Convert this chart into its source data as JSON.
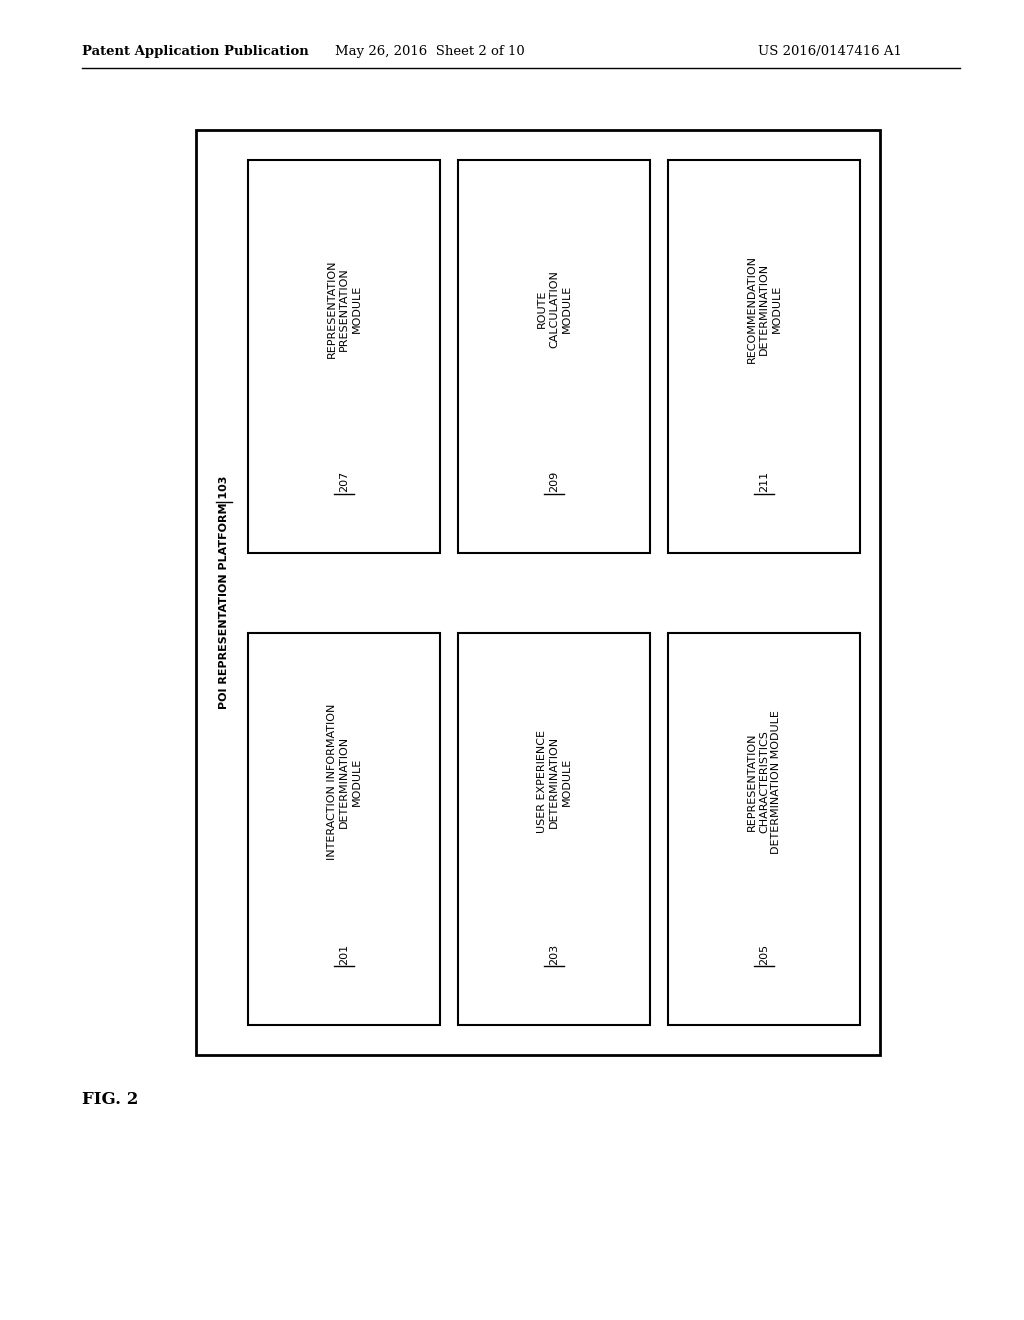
{
  "fig_width": 10.24,
  "fig_height": 13.2,
  "bg_color": "#ffffff",
  "header_text": "Patent Application Publication",
  "header_date": "May 26, 2016  Sheet 2 of 10",
  "header_patent": "US 2016/0147416 A1",
  "fig_label": "FIG. 2",
  "platform_label": "POI REPRESENTATION PLATFORM 103",
  "top_row_boxes": [
    {
      "lines": [
        "REPRESENTATION",
        "PRESENTATION",
        "MODULE",
        "207"
      ],
      "number": "207"
    },
    {
      "lines": [
        "ROUTE",
        "CALCULATION",
        "MODULE",
        "209"
      ],
      "number": "209"
    },
    {
      "lines": [
        "RECOMMENDATION",
        "DETERMINATION",
        "MODULE",
        "211"
      ],
      "number": "211"
    }
  ],
  "bottom_row_boxes": [
    {
      "lines": [
        "INTERACTION INFORMATION",
        "DETERMINATION",
        "MODULE",
        "201"
      ],
      "number": "201"
    },
    {
      "lines": [
        "USER EXPERIENCE",
        "DETERMINATION",
        "MODULE",
        "203"
      ],
      "number": "203"
    },
    {
      "lines": [
        "REPRESENTATION",
        "CHARACTERISTICS",
        "DETERMINATION MODULE",
        "205"
      ],
      "number": "205"
    }
  ]
}
